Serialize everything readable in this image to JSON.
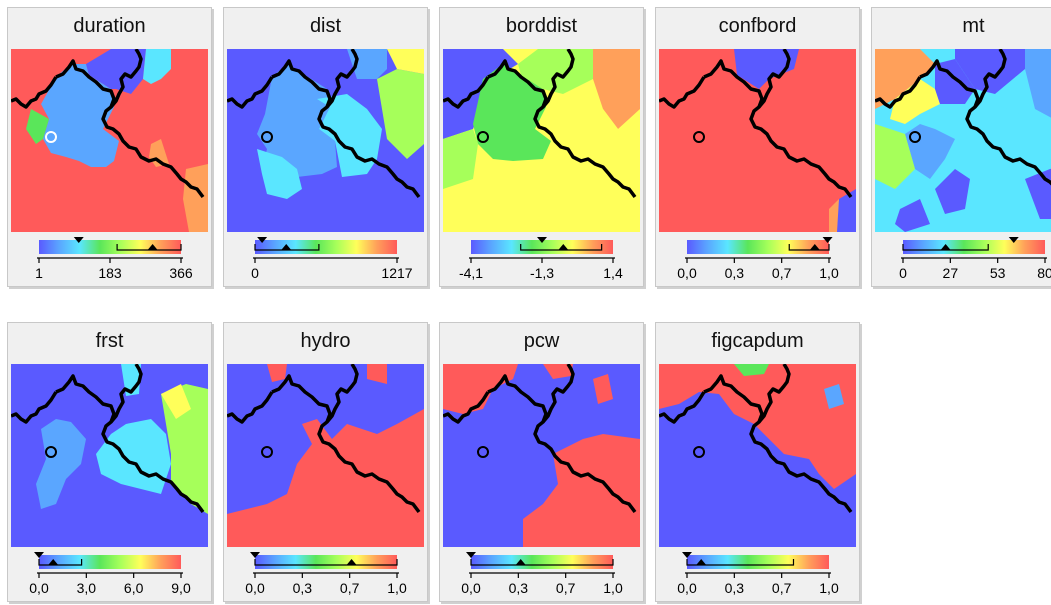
{
  "colors": {
    "red": "#ff5a5a",
    "blue": "#5a5aff",
    "cyan": "#5ae6ff",
    "lightblue": "#5aa6ff",
    "green": "#5ae65a",
    "lightgreen": "#a6ff5a",
    "yellow": "#ffff5a",
    "orange": "#ffa05a",
    "teal": "#5affe6"
  },
  "panels": [
    {
      "title": "duration",
      "ticks": [
        "1",
        "183",
        "366"
      ],
      "selected_marker": {
        "shape": "circle",
        "color": "white"
      },
      "legend": {
        "triangle": 0.28,
        "lower_marker": 0.8,
        "range": [
          0.55,
          1.0
        ]
      }
    },
    {
      "title": "dist",
      "ticks": [
        "0",
        "1217"
      ],
      "selected_marker": {
        "shape": "circle",
        "color": "black"
      },
      "legend": {
        "triangle": 0.05,
        "lower_marker": 0.22,
        "range": [
          0.0,
          0.45
        ]
      }
    },
    {
      "title": "borddist",
      "ticks": [
        "-4,1",
        "-1,3",
        "1,4"
      ],
      "selected_marker": {
        "shape": "circle",
        "color": "black"
      },
      "legend": {
        "triangle": 0.5,
        "lower_marker": 0.65,
        "range": [
          0.35,
          0.92
        ]
      }
    },
    {
      "title": "confbord",
      "ticks": [
        "0,0",
        "0,3",
        "0,7",
        "1,0"
      ],
      "selected_marker": {
        "shape": "circle",
        "color": "black"
      },
      "legend": {
        "triangle": 0.99,
        "lower_marker": 0.9,
        "range": [
          0.72,
          1.0
        ]
      }
    },
    {
      "title": "mt",
      "ticks": [
        "0",
        "27",
        "53",
        "80"
      ],
      "selected_marker": {
        "shape": "circle",
        "color": "black"
      },
      "legend": {
        "triangle": 0.78,
        "lower_marker": 0.3,
        "range": [
          0.0,
          0.6
        ]
      }
    },
    {
      "title": "frst",
      "ticks": [
        "0,0",
        "3,0",
        "6,0",
        "9,0"
      ],
      "selected_marker": {
        "shape": "circle",
        "color": "black"
      },
      "legend": {
        "triangle": 0.0,
        "lower_marker": 0.1,
        "range": [
          0.0,
          0.3
        ]
      }
    },
    {
      "title": "hydro",
      "ticks": [
        "0,0",
        "0,3",
        "0,7",
        "1,0"
      ],
      "selected_marker": {
        "shape": "circle",
        "color": "black"
      },
      "legend": {
        "triangle": 0.0,
        "lower_marker": 0.68,
        "range": [
          0.0,
          1.0
        ]
      }
    },
    {
      "title": "pcw",
      "ticks": [
        "0,0",
        "0,3",
        "0,7",
        "1,0"
      ],
      "selected_marker": {
        "shape": "circle",
        "color": "black"
      },
      "legend": {
        "triangle": 0.0,
        "lower_marker": 0.35,
        "range": [
          0.0,
          1.0
        ]
      }
    },
    {
      "title": "figcapdum",
      "ticks": [
        "0,0",
        "0,3",
        "0,7",
        "1,0"
      ],
      "selected_marker": {
        "shape": "circle",
        "color": "black"
      },
      "legend": {
        "triangle": 0.0,
        "lower_marker": 0.1,
        "range": [
          0.0,
          0.75
        ]
      }
    }
  ]
}
